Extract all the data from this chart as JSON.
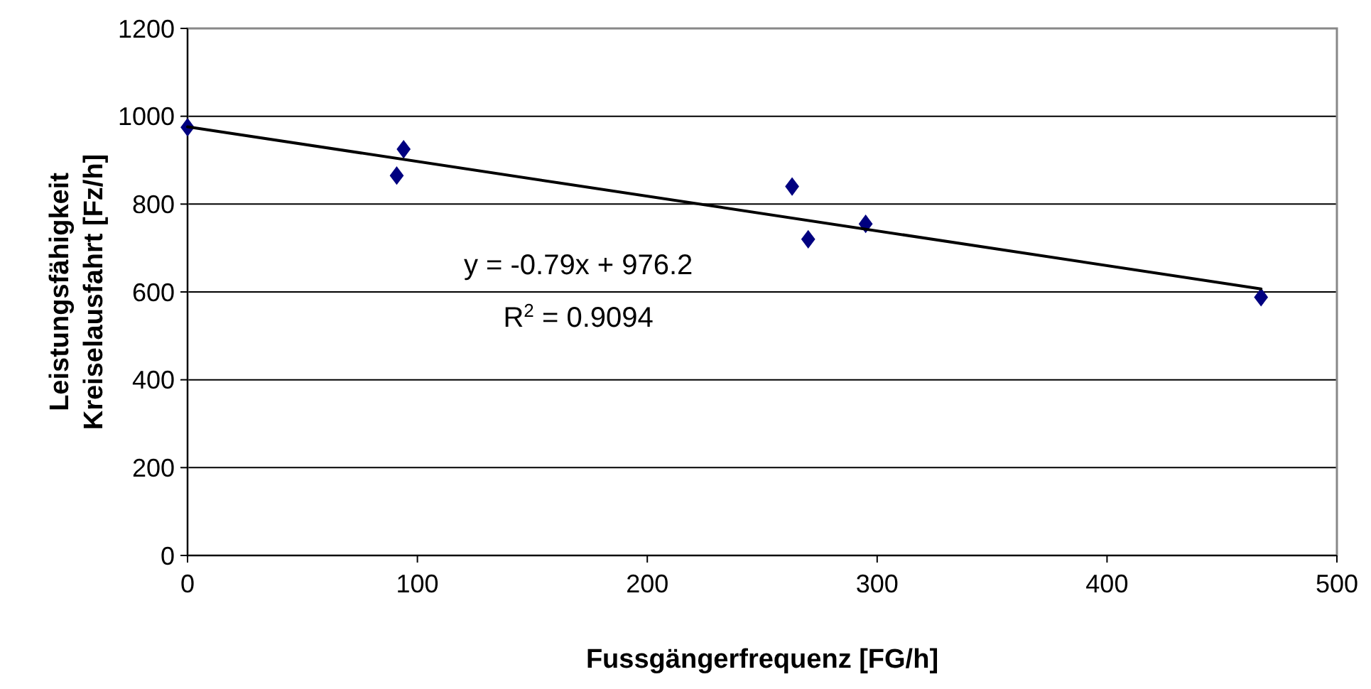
{
  "chart_data": {
    "type": "scatter",
    "xlabel": "Fussgängerfrequenz [FG/h]",
    "ylabel": "Leistungsfähigkeit\nKreiselausfahrt [Fz/h]",
    "xlim": [
      0,
      500
    ],
    "xticks": [
      0,
      100,
      200,
      300,
      400,
      500
    ],
    "ylim": [
      0,
      1200
    ],
    "yticks": [
      0,
      200,
      400,
      600,
      800,
      1000,
      1200
    ],
    "grid": "y",
    "marker": "diamond",
    "series": [
      {
        "color": "#000080",
        "x": [
          0,
          91,
          94,
          263,
          270,
          295,
          467
        ],
        "values": [
          975,
          865,
          925,
          840,
          720,
          755,
          588
        ]
      },
      {
        "type": "line",
        "color": "#000000",
        "marker": "none",
        "line_style": "solid",
        "x": [
          0,
          467
        ],
        "values": [
          976,
          607
        ]
      }
    ],
    "annotations": [
      "y = -0.79x + 976.2",
      "R$^{2}$ = 0.9094"
    ]
  }
}
